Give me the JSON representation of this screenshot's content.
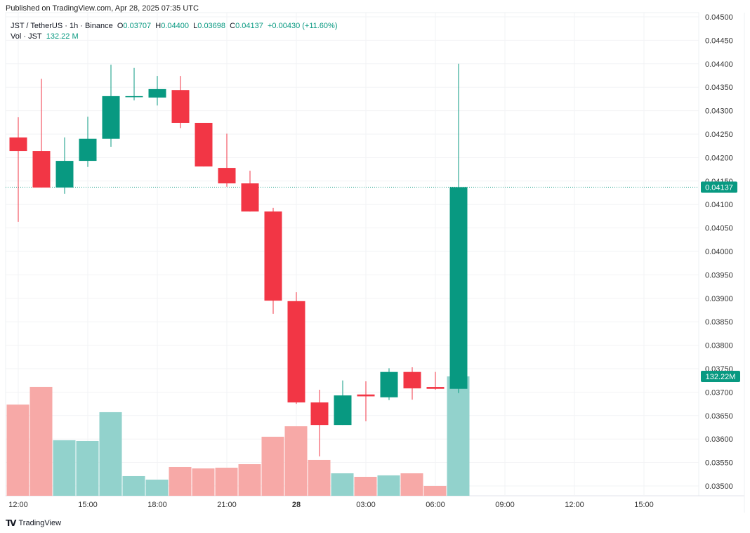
{
  "published": "Published on TradingView.com, Apr 28, 2025 07:35 UTC",
  "legend": {
    "symbol": "JST / TetherUS · 1h · Binance",
    "o_label": "O",
    "o": "0.03707",
    "h_label": "H",
    "h": "0.04400",
    "l_label": "L",
    "l": "0.03698",
    "c_label": "C",
    "c": "0.04137",
    "change": "+0.00430 (+11.60%)",
    "vol_label": "Vol · JST",
    "vol": "132.22 M"
  },
  "brand": "TradingView",
  "colors": {
    "up": "#089981",
    "down": "#f23645",
    "up_vol": "#92d2cc",
    "down_vol": "#f7a9a7"
  },
  "chart_data": {
    "type": "candlestick",
    "interval": "1h",
    "ylim": [
      0.0348,
      0.045
    ],
    "y_ticks": [
      "0.04500",
      "0.04450",
      "0.04400",
      "0.04350",
      "0.04300",
      "0.04250",
      "0.04200",
      "0.04150",
      "0.04100",
      "0.04050",
      "0.04000",
      "0.03950",
      "0.03900",
      "0.03850",
      "0.03800",
      "0.03750",
      "0.03700",
      "0.03650",
      "0.03600",
      "0.03550",
      "0.03500"
    ],
    "x_ticks": [
      {
        "label": "12:00",
        "hour_index": 0
      },
      {
        "label": "15:00",
        "hour_index": 3
      },
      {
        "label": "18:00",
        "hour_index": 6
      },
      {
        "label": "21:00",
        "hour_index": 9
      },
      {
        "label": "28",
        "hour_index": 12,
        "bold": true
      },
      {
        "label": "03:00",
        "hour_index": 15
      },
      {
        "label": "06:00",
        "hour_index": 18
      },
      {
        "label": "09:00",
        "hour_index": 21
      },
      {
        "label": "12:00",
        "hour_index": 24
      },
      {
        "label": "15:00",
        "hour_index": 27
      }
    ],
    "last_price_label": "0.04137",
    "last_volume_label": "132.22M",
    "candles": [
      {
        "o": 0.04243,
        "h": 0.04286,
        "l": 0.04063,
        "c": 0.04214,
        "v": 101
      },
      {
        "o": 0.04214,
        "h": 0.04368,
        "l": 0.04136,
        "c": 0.04136,
        "v": 120.6
      },
      {
        "o": 0.04136,
        "h": 0.04243,
        "l": 0.04123,
        "c": 0.04193,
        "v": 61.5
      },
      {
        "o": 0.04193,
        "h": 0.04287,
        "l": 0.0418,
        "c": 0.0424,
        "v": 60.7
      },
      {
        "o": 0.0424,
        "h": 0.04398,
        "l": 0.04223,
        "c": 0.04331,
        "v": 92.6
      },
      {
        "o": 0.04329,
        "h": 0.04391,
        "l": 0.04322,
        "c": 0.04331,
        "v": 21.8
      },
      {
        "o": 0.04328,
        "h": 0.04374,
        "l": 0.04311,
        "c": 0.04346,
        "v": 17.9
      },
      {
        "o": 0.04344,
        "h": 0.04374,
        "l": 0.04263,
        "c": 0.04274,
        "v": 31.9
      },
      {
        "o": 0.04274,
        "h": 0.04274,
        "l": 0.04181,
        "c": 0.04181,
        "v": 30.3
      },
      {
        "o": 0.04178,
        "h": 0.04251,
        "l": 0.04138,
        "c": 0.04145,
        "v": 31.1
      },
      {
        "o": 0.04145,
        "h": 0.04172,
        "l": 0.04085,
        "c": 0.04085,
        "v": 35.0
      },
      {
        "o": 0.04085,
        "h": 0.04093,
        "l": 0.03867,
        "c": 0.03895,
        "v": 65.4
      },
      {
        "o": 0.03894,
        "h": 0.03913,
        "l": 0.03675,
        "c": 0.03678,
        "v": 77.0
      },
      {
        "o": 0.03678,
        "h": 0.03705,
        "l": 0.03563,
        "c": 0.0363,
        "v": 39.7
      },
      {
        "o": 0.0363,
        "h": 0.03725,
        "l": 0.0363,
        "c": 0.03693,
        "v": 24.9
      },
      {
        "o": 0.03695,
        "h": 0.03723,
        "l": 0.03638,
        "c": 0.03691,
        "v": 21.0
      },
      {
        "o": 0.03689,
        "h": 0.03751,
        "l": 0.03683,
        "c": 0.03743,
        "v": 22.6
      },
      {
        "o": 0.03743,
        "h": 0.03753,
        "l": 0.03684,
        "c": 0.03708,
        "v": 24.9
      },
      {
        "o": 0.03711,
        "h": 0.03743,
        "l": 0.03705,
        "c": 0.03707,
        "v": 10.9
      },
      {
        "o": 0.03707,
        "h": 0.044,
        "l": 0.03698,
        "c": 0.04137,
        "v": 132.22
      }
    ]
  }
}
